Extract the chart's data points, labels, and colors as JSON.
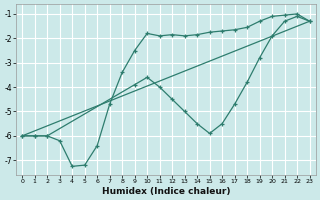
{
  "xlabel": "Humidex (Indice chaleur)",
  "bg_color": "#cce9e9",
  "grid_color": "#ffffff",
  "line_color": "#2e7d6e",
  "xlim": [
    -0.5,
    23.5
  ],
  "ylim": [
    -7.6,
    -0.6
  ],
  "yticks": [
    -1,
    -2,
    -3,
    -4,
    -5,
    -6,
    -7
  ],
  "xticks": [
    0,
    1,
    2,
    3,
    4,
    5,
    6,
    7,
    8,
    9,
    10,
    11,
    12,
    13,
    14,
    15,
    16,
    17,
    18,
    19,
    20,
    21,
    22,
    23
  ],
  "line1_x": [
    0,
    1,
    2,
    3,
    4,
    5,
    6,
    7,
    8,
    9,
    10,
    11,
    12,
    13,
    14,
    15,
    16,
    17,
    18,
    19,
    20,
    21,
    22,
    23
  ],
  "line1_y": [
    -6.0,
    -6.0,
    -6.0,
    -6.2,
    -7.25,
    -7.2,
    -6.4,
    -4.7,
    -3.4,
    -2.5,
    -1.8,
    -1.9,
    -1.85,
    -1.9,
    -1.85,
    -1.75,
    -1.7,
    -1.65,
    -1.55,
    -1.3,
    -1.1,
    -1.05,
    -1.0,
    -1.3
  ],
  "line2_x": [
    0,
    1,
    2,
    9,
    10,
    11,
    12,
    13,
    14,
    15,
    16,
    17,
    18,
    19,
    20,
    21,
    22,
    23
  ],
  "line2_y": [
    -6.0,
    -6.0,
    -6.0,
    -3.9,
    -3.6,
    -4.0,
    -4.5,
    -5.0,
    -5.5,
    -5.9,
    -5.5,
    -4.7,
    -3.8,
    -2.8,
    -1.9,
    -1.3,
    -1.1,
    -1.3
  ],
  "line3_x": [
    0,
    23
  ],
  "line3_y": [
    -6.0,
    -1.3
  ]
}
